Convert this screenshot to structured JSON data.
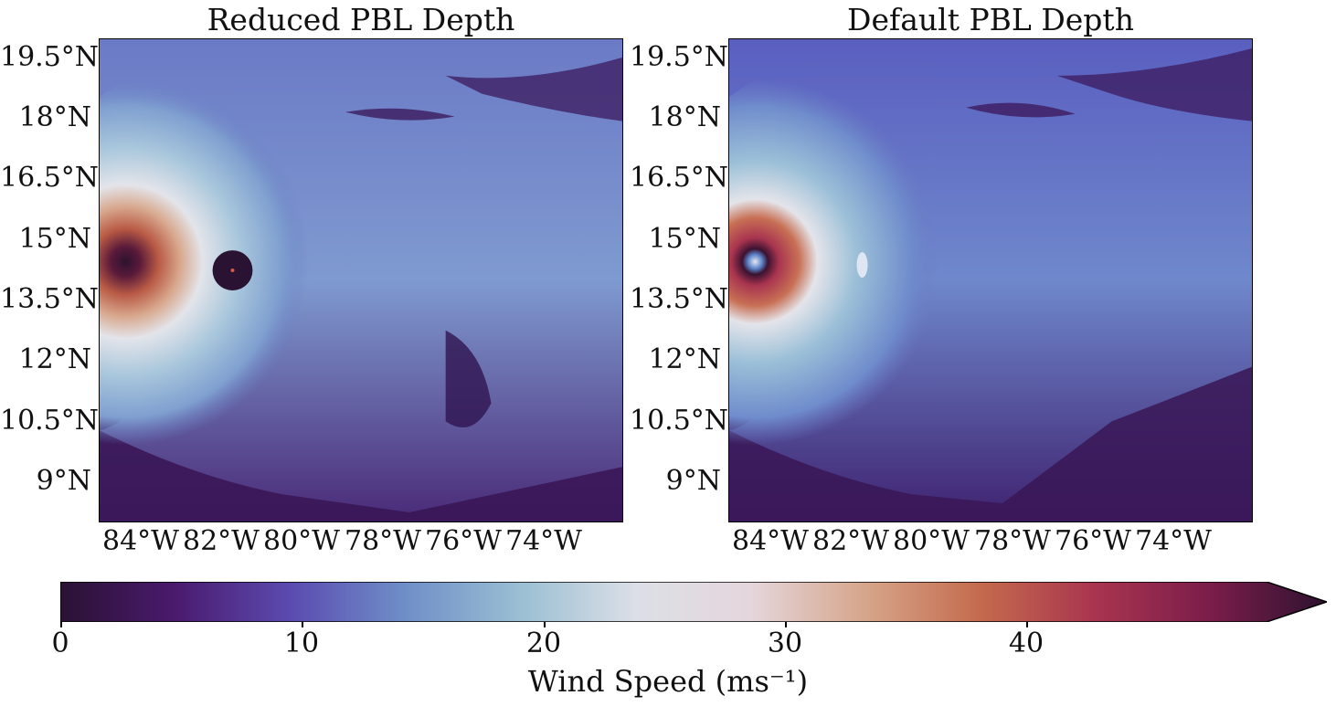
{
  "panels": [
    {
      "title": "Reduced PBL Depth"
    },
    {
      "title": "Default PBL Depth"
    }
  ],
  "lat_ticks": [
    "19.5°N",
    "18°N",
    "16.5°N",
    "15°N",
    "13.5°N",
    "12°N",
    "10.5°N",
    "9°N"
  ],
  "lon_ticks": [
    "84°W",
    "82°W",
    "80°W",
    "78°W",
    "76°W",
    "74°W"
  ],
  "colorbar": {
    "ticks": [
      "0",
      "10",
      "20",
      "30",
      "40"
    ],
    "label": "Wind Speed (ms⁻¹)",
    "min": 0,
    "max": 52,
    "extend": "max",
    "colormap": [
      "#2a1233",
      "#4a1a6e",
      "#5b4bb0",
      "#6f8fc8",
      "#9bbfd3",
      "#dcdfe6",
      "#e5d6dc",
      "#d6a58a",
      "#c46a4d",
      "#a8344f",
      "#7a1d4a",
      "#2e1230"
    ]
  }
}
